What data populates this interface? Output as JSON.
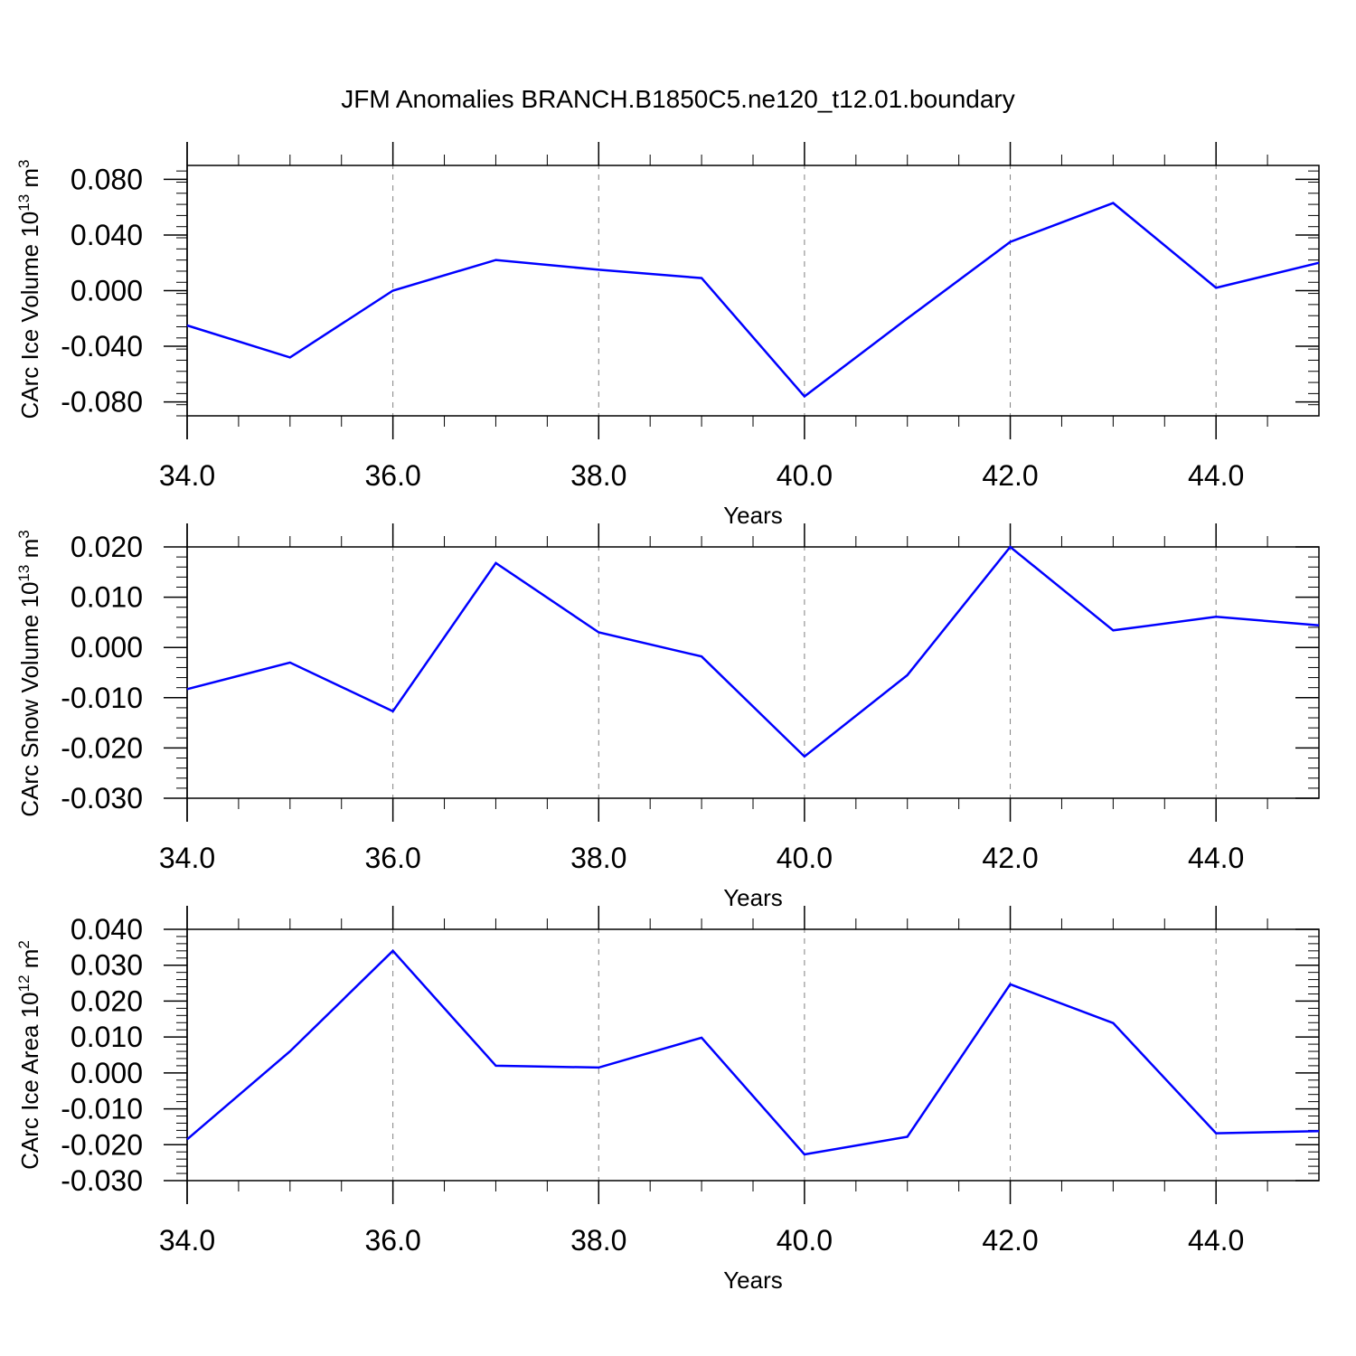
{
  "title": "JFM Anomalies BRANCH.B1850C5.ne120_t12.01.boundary",
  "line_color": "#0000ff",
  "grid_color": "#808080",
  "chart_data": [
    {
      "type": "line",
      "ylabel": "CArc Ice Volume 10",
      "ylabel_sup": "13",
      "ylabel_unit": " m",
      "ylabel_unit_sup": "3",
      "xlabel": "Years",
      "xlim": [
        34,
        45
      ],
      "ylim": [
        -0.09,
        0.09
      ],
      "xticks": [
        34,
        36,
        38,
        40,
        42,
        44
      ],
      "xtick_labels": [
        "34.0",
        "36.0",
        "38.0",
        "40.0",
        "42.0",
        "44.0"
      ],
      "yticks": [
        -0.08,
        -0.04,
        0.0,
        0.04,
        0.08
      ],
      "ytick_labels": [
        "-0.080",
        "-0.040",
        "0.000",
        "0.040",
        "0.080"
      ],
      "grid": "vertical dashed at major x ticks",
      "x": [
        34,
        35,
        36,
        37,
        38,
        39,
        40,
        41,
        42,
        43,
        44,
        45
      ],
      "values": [
        -0.025,
        -0.048,
        0.0,
        0.022,
        0.015,
        0.009,
        -0.076,
        -0.02,
        0.035,
        0.063,
        0.002,
        0.02
      ]
    },
    {
      "type": "line",
      "ylabel": "CArc Snow Volume 10",
      "ylabel_sup": "13",
      "ylabel_unit": " m",
      "ylabel_unit_sup": "3",
      "xlabel": "Years",
      "xlim": [
        34,
        45
      ],
      "ylim": [
        -0.03,
        0.02
      ],
      "xticks": [
        34,
        36,
        38,
        40,
        42,
        44
      ],
      "xtick_labels": [
        "34.0",
        "36.0",
        "38.0",
        "40.0",
        "42.0",
        "44.0"
      ],
      "yticks": [
        -0.03,
        -0.02,
        -0.01,
        0.0,
        0.01,
        0.02
      ],
      "ytick_labels": [
        "-0.030",
        "-0.020",
        "-0.010",
        "0.000",
        "0.010",
        "0.020"
      ],
      "grid": "vertical dashed at major x ticks",
      "x": [
        34,
        35,
        36,
        37,
        38,
        39,
        40,
        41,
        42,
        43,
        44,
        45
      ],
      "values": [
        -0.0083,
        -0.003,
        -0.0127,
        0.0168,
        0.003,
        -0.0018,
        -0.0217,
        -0.0055,
        0.02,
        0.0034,
        0.0061,
        0.0044
      ]
    },
    {
      "type": "line",
      "ylabel": "CArc Ice Area 10",
      "ylabel_sup": "12",
      "ylabel_unit": " m",
      "ylabel_unit_sup": "2",
      "xlabel": "Years",
      "xlim": [
        34,
        45
      ],
      "ylim": [
        -0.03,
        0.04
      ],
      "xticks": [
        34,
        36,
        38,
        40,
        42,
        44
      ],
      "xtick_labels": [
        "34.0",
        "36.0",
        "38.0",
        "40.0",
        "42.0",
        "44.0"
      ],
      "yticks": [
        -0.03,
        -0.02,
        -0.01,
        0.0,
        0.01,
        0.02,
        0.03,
        0.04
      ],
      "ytick_labels": [
        "-0.030",
        "-0.020",
        "-0.010",
        "0.000",
        "0.010",
        "0.020",
        "0.030",
        "0.040"
      ],
      "grid": "vertical dashed at major x ticks",
      "x": [
        34,
        35,
        36,
        37,
        38,
        39,
        40,
        41,
        42,
        43,
        44,
        45
      ],
      "values": [
        -0.0185,
        0.006,
        0.034,
        0.002,
        0.0015,
        0.0098,
        -0.0227,
        -0.0178,
        0.0247,
        0.0139,
        -0.0168,
        -0.0162
      ]
    }
  ]
}
